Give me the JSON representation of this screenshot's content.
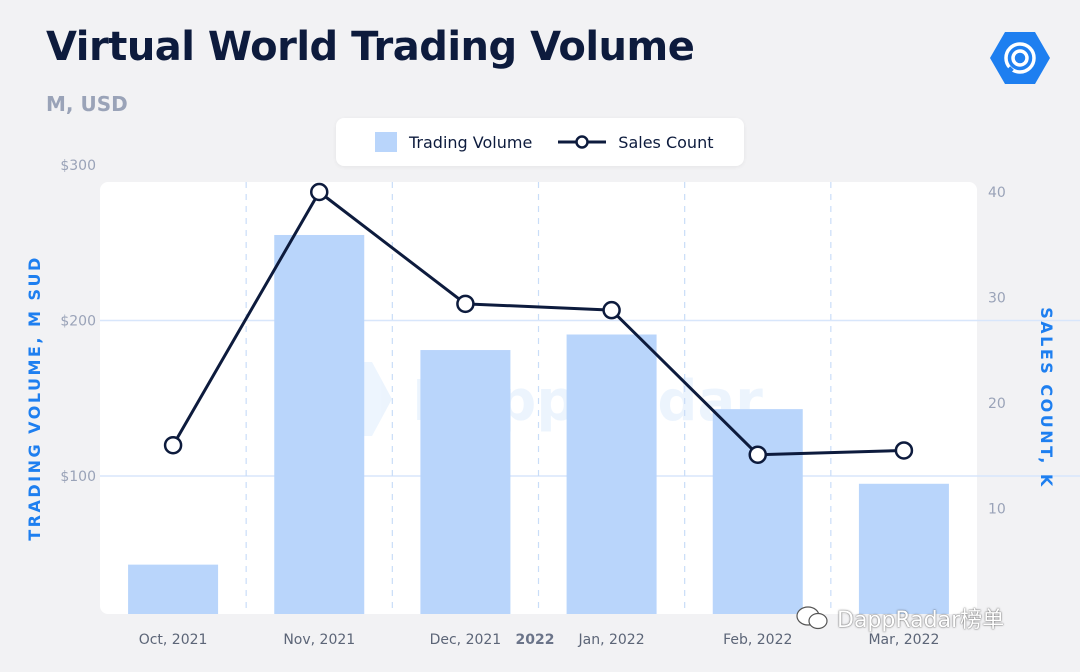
{
  "header": {
    "title": "Virtual World Trading Volume",
    "subtitle": "M, USD"
  },
  "legend": {
    "bar_label": "Trading Volume",
    "line_label": "Sales Count"
  },
  "watermark": "DappRadar",
  "footer_tag": "DappRadar榜单",
  "year_label": "2022",
  "colors": {
    "bar": "#b9d5fb",
    "line": "#0d1b3d",
    "accent": "#1e7ff0",
    "axis_text": "#9aa3b8"
  },
  "chart_data": {
    "type": "bar",
    "categories": [
      "Oct, 2021",
      "Nov, 2021",
      "Dec, 2021",
      "Jan, 2022",
      "Feb, 2022",
      "Mar, 2022"
    ],
    "series": [
      {
        "name": "Trading Volume",
        "type": "bar",
        "axis": "left",
        "values": [
          43,
          255,
          181,
          191,
          143,
          95
        ]
      },
      {
        "name": "Sales Count",
        "type": "line",
        "axis": "right",
        "values": [
          16,
          40,
          29.4,
          28.8,
          15.1,
          15.5
        ]
      }
    ],
    "ylabel": "TRADING VOLUME, M SUD",
    "y2label": "SALES COUNT, K",
    "y_ticks": [
      "$100",
      "$200",
      "$300"
    ],
    "y_tick_values": [
      100,
      200,
      300
    ],
    "y2_ticks": [
      "10",
      "20",
      "30",
      "40"
    ],
    "y2_tick_values": [
      10,
      20,
      30,
      40
    ],
    "ylim": [
      15,
      300
    ],
    "y2lim": [
      0,
      40
    ],
    "grid": true,
    "legend_position": "top-center"
  }
}
